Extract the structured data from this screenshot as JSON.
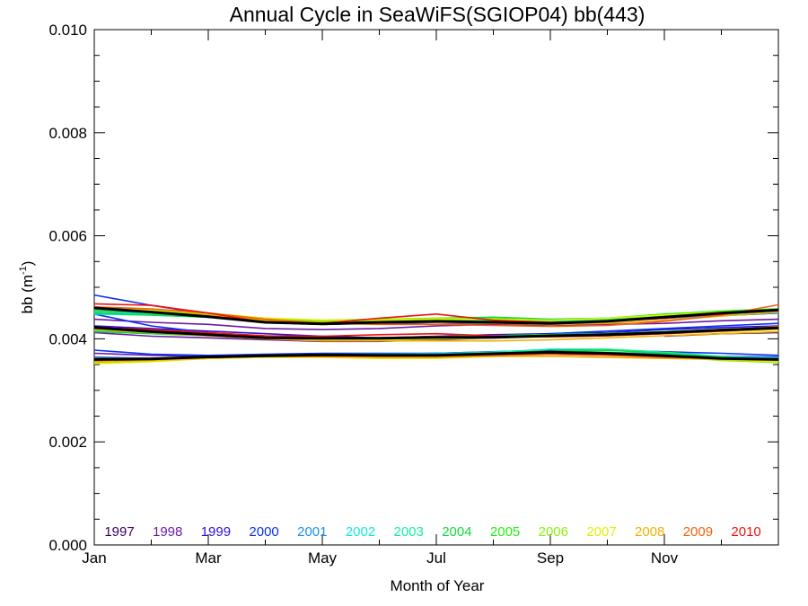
{
  "chart_data": {
    "type": "line",
    "title": "Annual Cycle in SeaWiFS(SGIOP04) bb(443)",
    "xlabel": "Month of Year",
    "ylabel_main": "bb (m",
    "ylabel_sup": "-1",
    "ylabel_close": ")",
    "ylim": [
      0.0,
      0.01
    ],
    "xlim": [
      0,
      12
    ],
    "y_ticks": [
      "0.000",
      "0.002",
      "0.004",
      "0.006",
      "0.008",
      "0.010"
    ],
    "y_tick_values": [
      0.0,
      0.002,
      0.004,
      0.006,
      0.008,
      0.01
    ],
    "x_ticks": [
      "Jan",
      "Mar",
      "May",
      "Jul",
      "Sep",
      "Nov"
    ],
    "x_tick_values": [
      0,
      2,
      4,
      6,
      8,
      10
    ],
    "grid": false,
    "legend_placement": "bottom",
    "x": [
      0,
      1,
      2,
      3,
      4,
      5,
      6,
      7,
      8,
      9,
      10,
      11,
      12
    ],
    "series": [
      {
        "name": "1997",
        "color": "#3a0060",
        "bands": [
          [
            null,
            null,
            null,
            null,
            null,
            null,
            null,
            null,
            null,
            null,
            0.0044,
            0.00445,
            0.0045
          ],
          [
            null,
            null,
            null,
            null,
            null,
            null,
            null,
            null,
            null,
            null,
            0.00405,
            0.0041,
            0.00412
          ],
          [
            null,
            null,
            null,
            null,
            null,
            null,
            null,
            null,
            null,
            null,
            0.00365,
            0.00362,
            0.0036
          ]
        ]
      },
      {
        "name": "1998",
        "color": "#6a1aa8",
        "bands": [
          [
            0.00438,
            0.00432,
            0.00428,
            0.0042,
            0.00418,
            0.0042,
            0.00425,
            0.00428,
            0.00425,
            0.00428,
            0.0043,
            0.00435,
            0.00438
          ],
          [
            0.00412,
            0.00405,
            0.00402,
            0.00398,
            0.00395,
            0.00395,
            0.00398,
            0.00402,
            0.00405,
            0.00408,
            0.0041,
            0.00415,
            0.0042
          ],
          [
            0.00372,
            0.00368,
            0.00366,
            0.00368,
            0.0037,
            0.00368,
            0.00368,
            0.00372,
            0.00375,
            0.00372,
            0.00368,
            0.00366,
            0.00365
          ]
        ]
      },
      {
        "name": "1999",
        "color": "#3010d8",
        "bands": [
          [
            0.00458,
            0.00452,
            0.00448,
            0.0044,
            0.00432,
            0.0043,
            0.00428,
            0.0043,
            0.00432,
            0.00436,
            0.0044,
            0.00448,
            0.00455
          ],
          [
            0.00425,
            0.0042,
            0.00415,
            0.0041,
            0.00405,
            0.00402,
            0.00405,
            0.00408,
            0.0041,
            0.00412,
            0.00418,
            0.00422,
            0.00425
          ],
          [
            0.00362,
            0.0036,
            0.00362,
            0.00365,
            0.00368,
            0.0037,
            0.00372,
            0.00372,
            0.0037,
            0.00368,
            0.00366,
            0.00362,
            0.0036
          ]
        ]
      },
      {
        "name": "2000",
        "color": "#0a30f0",
        "bands": [
          [
            0.00485,
            0.00465,
            0.00448,
            0.00432,
            0.00428,
            0.0043,
            0.00432,
            0.00434,
            0.00432,
            0.00436,
            0.00445,
            0.00452,
            0.00458
          ],
          [
            0.00448,
            0.00425,
            0.00412,
            0.00405,
            0.00402,
            0.004,
            0.00402,
            0.00405,
            0.0041,
            0.00415,
            0.0042,
            0.00425,
            0.0043
          ],
          [
            0.00378,
            0.0037,
            0.00368,
            0.0037,
            0.00372,
            0.00372,
            0.00372,
            0.00375,
            0.00378,
            0.00378,
            0.00375,
            0.00372,
            0.00368
          ]
        ]
      },
      {
        "name": "2001",
        "color": "#1a90f0",
        "bands": [
          [
            0.00455,
            0.0045,
            0.00445,
            0.00438,
            0.00432,
            0.00432,
            0.00435,
            0.00436,
            0.00434,
            0.00436,
            0.0044,
            0.00445,
            0.0045
          ],
          [
            0.00418,
            0.00412,
            0.00408,
            0.00403,
            0.004,
            0.004,
            0.00402,
            0.00405,
            0.00408,
            0.0041,
            0.00413,
            0.00418,
            0.0042
          ],
          [
            0.00365,
            0.00362,
            0.00365,
            0.00368,
            0.0037,
            0.0037,
            0.00372,
            0.00375,
            0.00376,
            0.00374,
            0.0037,
            0.00366,
            0.00364
          ]
        ]
      },
      {
        "name": "2002",
        "color": "#10e8e0",
        "bands": [
          [
            0.00448,
            0.00446,
            0.00442,
            0.00436,
            0.00432,
            0.00434,
            0.00436,
            0.00436,
            0.00434,
            0.00436,
            0.0044,
            0.00446,
            0.00452
          ],
          [
            0.00415,
            0.00412,
            0.00408,
            0.00404,
            0.00402,
            0.00402,
            0.00404,
            0.00406,
            0.00408,
            0.0041,
            0.00414,
            0.00418,
            0.0042
          ],
          [
            0.00362,
            0.00362,
            0.00364,
            0.00366,
            0.00368,
            0.00368,
            0.00368,
            0.0037,
            0.00372,
            0.00372,
            0.00368,
            0.00364,
            0.00362
          ]
        ]
      },
      {
        "name": "2003",
        "color": "#10f0a0",
        "bands": [
          [
            0.00452,
            0.00448,
            0.00444,
            0.00438,
            0.00434,
            0.00436,
            0.00438,
            0.00436,
            0.00434,
            0.00438,
            0.00444,
            0.0045,
            0.00455
          ],
          [
            0.00416,
            0.00412,
            0.00408,
            0.00404,
            0.00402,
            0.00402,
            0.00404,
            0.00406,
            0.00408,
            0.0041,
            0.00414,
            0.00418,
            0.00422
          ],
          [
            0.0036,
            0.00362,
            0.00365,
            0.00368,
            0.0037,
            0.0037,
            0.0037,
            0.00374,
            0.0038,
            0.0038,
            0.00374,
            0.00366,
            0.0036
          ]
        ]
      },
      {
        "name": "2004",
        "color": "#10d840",
        "bands": [
          [
            0.0045,
            0.00446,
            0.00442,
            0.00434,
            0.00432,
            0.00436,
            0.0044,
            0.00442,
            0.00438,
            0.0044,
            0.00446,
            0.00452,
            0.00456
          ],
          [
            0.00414,
            0.0041,
            0.00406,
            0.00402,
            0.004,
            0.004,
            0.00402,
            0.00404,
            0.00406,
            0.00408,
            0.00412,
            0.00416,
            0.0042
          ],
          [
            0.00358,
            0.0036,
            0.00364,
            0.00368,
            0.0037,
            0.00368,
            0.00368,
            0.00372,
            0.00376,
            0.00378,
            0.00372,
            0.00364,
            0.00358
          ]
        ]
      },
      {
        "name": "2005",
        "color": "#20f010",
        "bands": [
          [
            0.00456,
            0.00452,
            0.00446,
            0.00438,
            0.00434,
            0.00436,
            0.00438,
            0.0044,
            0.00436,
            0.0044,
            0.00448,
            0.00454,
            0.00458
          ],
          [
            0.00418,
            0.00414,
            0.00408,
            0.00402,
            0.004,
            0.00402,
            0.00404,
            0.00406,
            0.00408,
            0.0041,
            0.00414,
            0.00418,
            0.00422
          ],
          [
            0.00354,
            0.00358,
            0.00364,
            0.00368,
            0.00368,
            0.00366,
            0.00366,
            0.0037,
            0.00374,
            0.00374,
            0.00368,
            0.0036,
            0.00355
          ]
        ]
      },
      {
        "name": "2006",
        "color": "#88f010",
        "bands": [
          [
            0.0046,
            0.00455,
            0.00448,
            0.0044,
            0.00436,
            0.00438,
            0.0044,
            0.00438,
            0.00436,
            0.0044,
            0.00446,
            0.00452,
            0.00456
          ],
          [
            0.0042,
            0.00414,
            0.00408,
            0.00402,
            0.004,
            0.00402,
            0.00404,
            0.00404,
            0.00406,
            0.00408,
            0.00412,
            0.00416,
            0.0042
          ],
          [
            0.00352,
            0.00356,
            0.00362,
            0.00366,
            0.00366,
            0.00364,
            0.00364,
            0.00368,
            0.00372,
            0.00372,
            0.00366,
            0.00358,
            0.00354
          ]
        ]
      },
      {
        "name": "2007",
        "color": "#e0f000",
        "bands": [
          [
            0.00462,
            0.00456,
            0.0045,
            0.0044,
            0.00436,
            0.00436,
            0.00438,
            0.00438,
            0.00436,
            0.0044,
            0.00446,
            0.00452,
            0.00456
          ],
          [
            0.00422,
            0.00416,
            0.0041,
            0.00402,
            0.00398,
            0.00398,
            0.004,
            0.00402,
            0.00404,
            0.00406,
            0.0041,
            0.00414,
            0.00418
          ],
          [
            0.00352,
            0.00356,
            0.00362,
            0.00364,
            0.00364,
            0.00362,
            0.00362,
            0.00366,
            0.0037,
            0.0037,
            0.00366,
            0.0036,
            0.00356
          ]
        ]
      },
      {
        "name": "2008",
        "color": "#f0b000",
        "bands": [
          [
            0.00458,
            0.00452,
            0.00446,
            0.00436,
            0.00432,
            0.00432,
            0.00432,
            0.0043,
            0.00428,
            0.0043,
            0.00436,
            0.00444,
            0.00452
          ],
          [
            0.00418,
            0.00412,
            0.00406,
            0.004,
            0.00396,
            0.00396,
            0.00396,
            0.00396,
            0.00398,
            0.00402,
            0.00406,
            0.0041,
            0.00414
          ],
          [
            0.00355,
            0.00358,
            0.00362,
            0.00366,
            0.00366,
            0.00364,
            0.00364,
            0.00366,
            0.00366,
            0.00364,
            0.00362,
            0.0036,
            0.00358
          ]
        ]
      },
      {
        "name": "2009",
        "color": "#f06010",
        "bands": [
          [
            0.00462,
            0.00458,
            0.0045,
            0.00438,
            0.0043,
            0.00428,
            0.00428,
            0.00426,
            0.00424,
            0.00426,
            0.00434,
            0.00446,
            0.00466
          ],
          [
            0.0042,
            0.00416,
            0.0041,
            0.00404,
            0.004,
            0.00402,
            0.00404,
            0.00404,
            0.00404,
            0.00406,
            0.0041,
            0.00416,
            0.00424
          ],
          [
            0.00358,
            0.0036,
            0.00364,
            0.00366,
            0.00366,
            0.00366,
            0.00366,
            0.00368,
            0.0037,
            0.00368,
            0.00364,
            0.00362,
            0.0036
          ]
        ]
      },
      {
        "name": "2010",
        "color": "#f01010",
        "bands": [
          [
            0.00468,
            0.00465,
            0.0045,
            0.00432,
            0.0043,
            0.0044,
            0.00448,
            0.00436,
            0.00432,
            0.00434,
            0.0044,
            0.00448,
            0.00455
          ],
          [
            0.00422,
            0.00418,
            0.00412,
            0.00406,
            0.00405,
            0.00408,
            0.0041,
            0.00406,
            0.00404,
            0.00406,
            0.0041,
            0.00415,
            0.0042
          ],
          [
            0.00362,
            0.00362,
            0.00364,
            0.00366,
            0.00368,
            0.00368,
            0.00368,
            0.0037,
            0.00372,
            0.0037,
            0.00366,
            0.00362,
            0.0036
          ]
        ]
      },
      {
        "name": "",
        "color": "#000000",
        "is_mean": true,
        "bands": [
          [
            0.0046,
            0.00452,
            0.00443,
            0.00432,
            0.00429,
            0.00432,
            0.00434,
            0.00432,
            0.0043,
            0.00434,
            0.00442,
            0.0045,
            0.00456
          ],
          [
            0.00422,
            0.00414,
            0.00408,
            0.00402,
            0.00401,
            0.00401,
            0.00403,
            0.00403,
            0.00406,
            0.00408,
            0.00412,
            0.00417,
            0.00421
          ],
          [
            0.0036,
            0.00361,
            0.00365,
            0.00367,
            0.00369,
            0.00368,
            0.00368,
            0.00371,
            0.00374,
            0.00372,
            0.00367,
            0.00362,
            0.0036
          ]
        ]
      }
    ]
  }
}
